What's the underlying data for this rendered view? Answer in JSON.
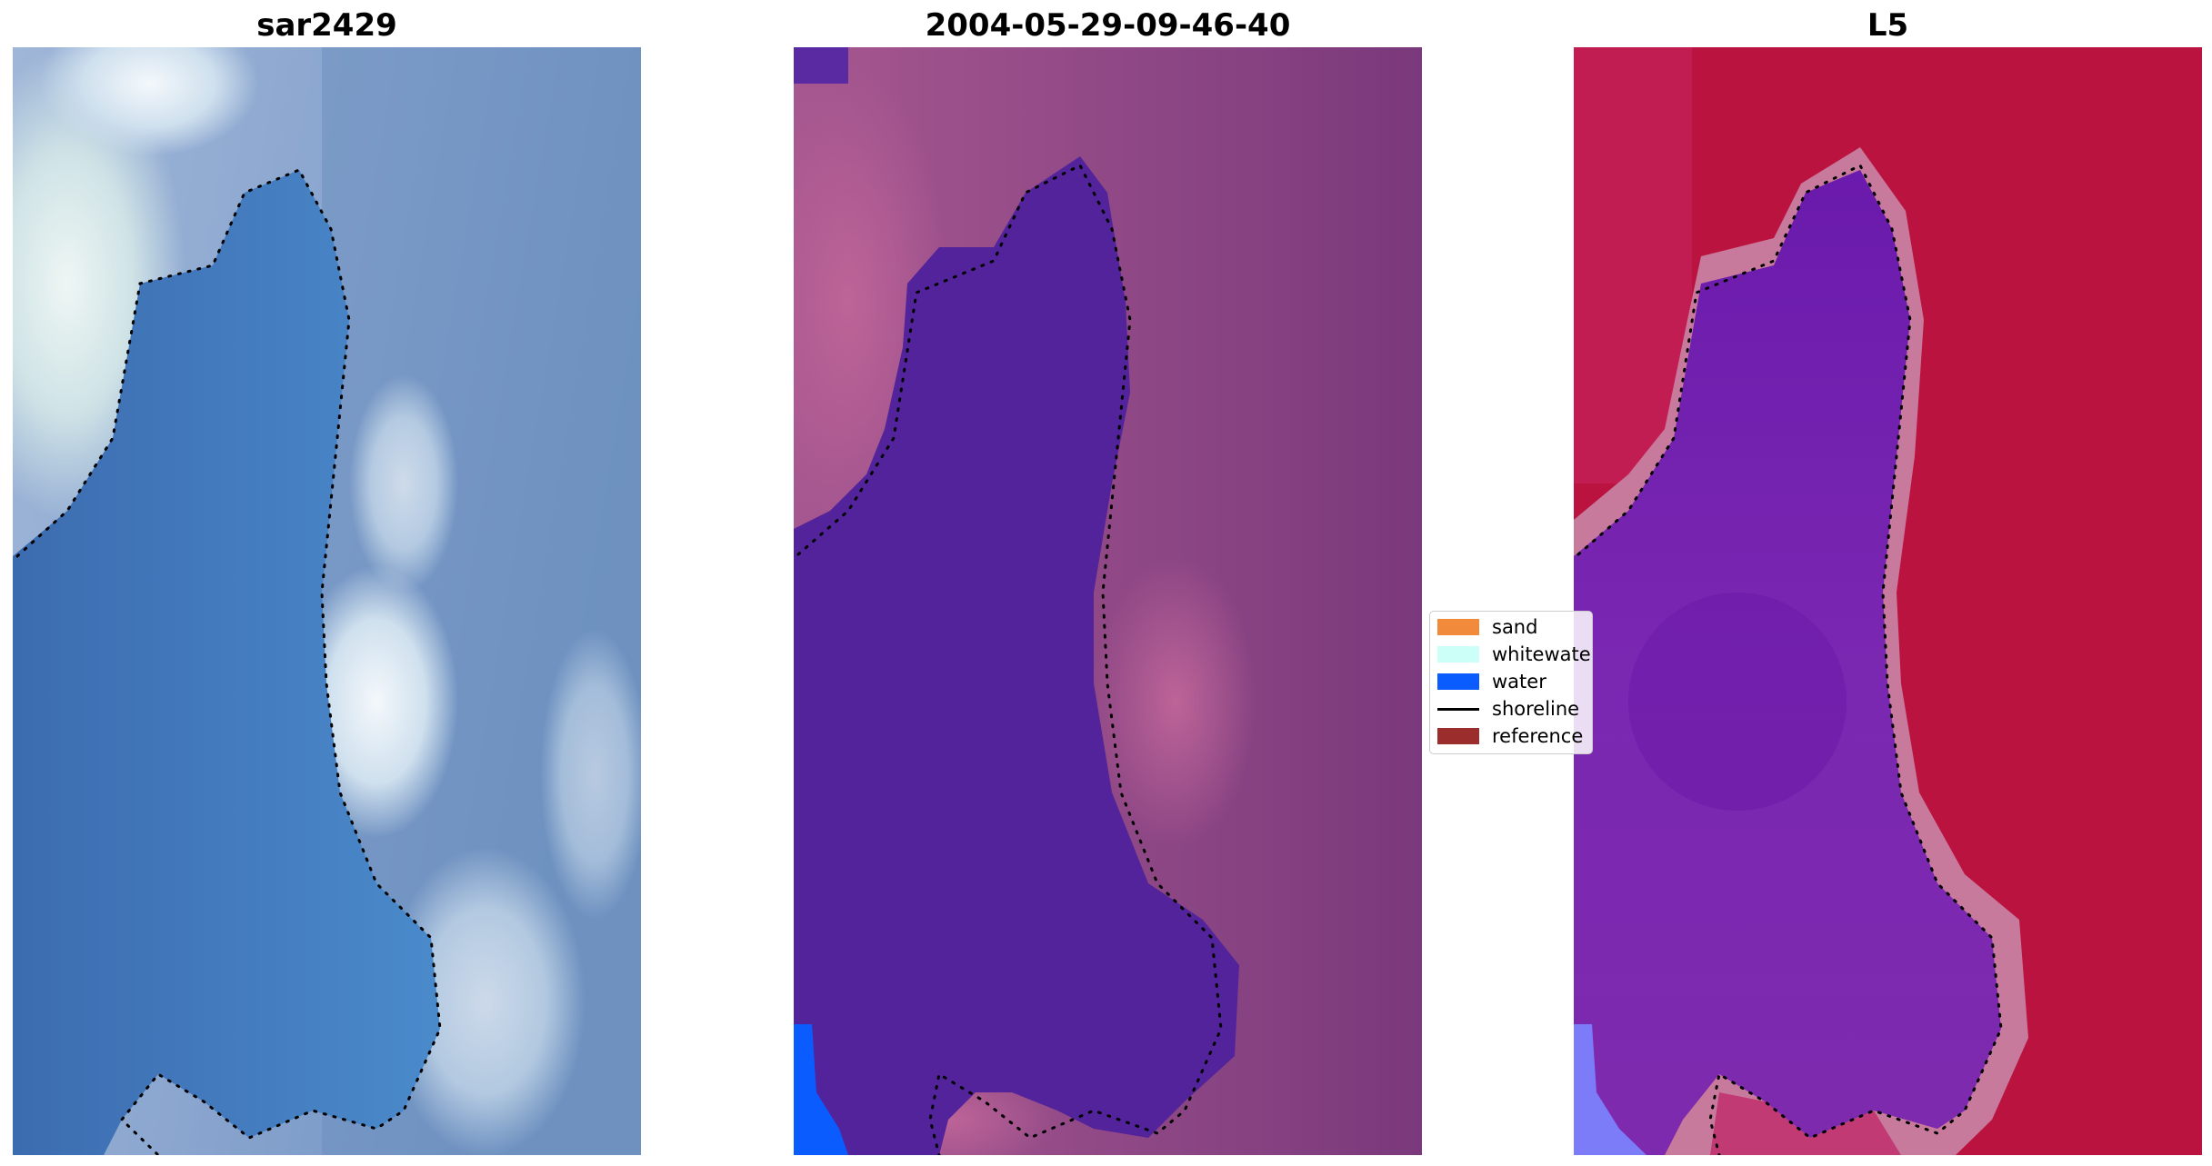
{
  "panels": [
    {
      "title": "sar2429",
      "image": "rgb satellite image with shoreline"
    },
    {
      "title": "2004-05-29-09-46-40",
      "image": "classified image with shoreline"
    },
    {
      "title": "L5",
      "image": "mndwi image with shoreline"
    }
  ],
  "legend": {
    "items": [
      {
        "label": "sand",
        "color": "#f28a3c",
        "kind": "patch"
      },
      {
        "label": "whitewater",
        "color": "#ccfff8",
        "kind": "patch"
      },
      {
        "label": "water",
        "color": "#0a5cff",
        "kind": "patch"
      },
      {
        "label": "shoreline",
        "color": "#000000",
        "kind": "line"
      },
      {
        "label": "reference",
        "color": "#9b2d2d",
        "kind": "patch"
      }
    ]
  },
  "colors": {
    "rgb_water": "#3f74b8",
    "rgb_land": "#7f9cc7",
    "class_water": "#52239a",
    "class_land": "#8e4a86",
    "class_bluewater": "#0a5cff",
    "index_water": "#6c1fb0",
    "index_land": "#bb1340",
    "shoreline": "#000000"
  }
}
